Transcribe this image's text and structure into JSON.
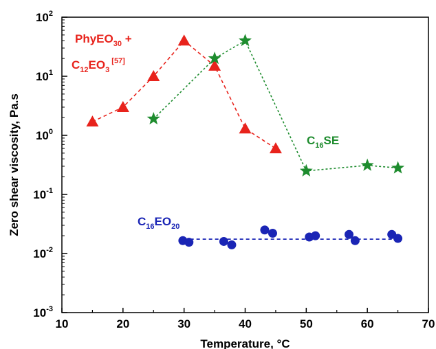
{
  "chart_data": {
    "type": "scatter",
    "xlabel": "Temperature, °C",
    "ylabel": "Zero shear viscosity, Pa.s",
    "xlim": [
      10,
      70
    ],
    "ylim": [
      0.001,
      100
    ],
    "yscale": "log",
    "x_ticks": [
      "10",
      "20",
      "30",
      "40",
      "50",
      "60",
      "70"
    ],
    "y_ticks": [
      {
        "base": "10",
        "exp": "-3",
        "value": 0.001
      },
      {
        "base": "10",
        "exp": "-2",
        "value": 0.01
      },
      {
        "base": "10",
        "exp": "-1",
        "value": 0.1
      },
      {
        "base": "10",
        "exp": "0",
        "value": 1
      },
      {
        "base": "10",
        "exp": "1",
        "value": 10
      },
      {
        "base": "10",
        "exp": "2",
        "value": 100
      }
    ],
    "grid": false,
    "series": [
      {
        "name": "PhyEO30 + C12EO3 [57]",
        "label_lines": [
          [
            {
              "t": "PhyEO"
            },
            {
              "t": "30",
              "sub": true
            },
            {
              "t": " +"
            }
          ],
          [
            {
              "t": "C"
            },
            {
              "t": "12",
              "sub": true
            },
            {
              "t": "EO"
            },
            {
              "t": "3",
              "sub": true
            },
            {
              "t": " [57]",
              "sup": true
            }
          ]
        ],
        "color": "#e8231c",
        "marker": "triangle",
        "line": "dashed",
        "x": [
          15,
          20,
          25,
          30,
          35,
          40,
          45
        ],
        "y": [
          1.7,
          3.0,
          10,
          40,
          15,
          1.3,
          0.6
        ]
      },
      {
        "name": "C16SE",
        "label_lines": [
          [
            {
              "t": "C"
            },
            {
              "t": "16",
              "sub": true
            },
            {
              "t": "SE"
            }
          ]
        ],
        "color": "#1e8c2e",
        "marker": "star",
        "line": "dotted",
        "x": [
          25,
          35,
          40,
          50,
          60,
          65
        ],
        "y": [
          1.9,
          20,
          40,
          0.25,
          0.31,
          0.28
        ]
      },
      {
        "name": "C16EO20",
        "label_lines": [
          [
            {
              "t": "C"
            },
            {
              "t": "16",
              "sub": true
            },
            {
              "t": "EO"
            },
            {
              "t": "20",
              "sub": true
            }
          ]
        ],
        "color": "#1a25b5",
        "marker": "circle",
        "line": "none",
        "x": [
          29.8,
          30.8,
          36.5,
          37.8,
          43.2,
          44.5,
          50.5,
          51.5,
          57,
          58,
          64,
          65
        ],
        "y": [
          0.0165,
          0.0155,
          0.016,
          0.014,
          0.025,
          0.022,
          0.019,
          0.02,
          0.021,
          0.0165,
          0.021,
          0.018
        ]
      }
    ],
    "fit_line": {
      "series": "C16EO20",
      "color": "#1a25b5",
      "style": "dashed",
      "x": [
        30,
        65
      ],
      "y": [
        0.0175,
        0.0175
      ]
    }
  }
}
